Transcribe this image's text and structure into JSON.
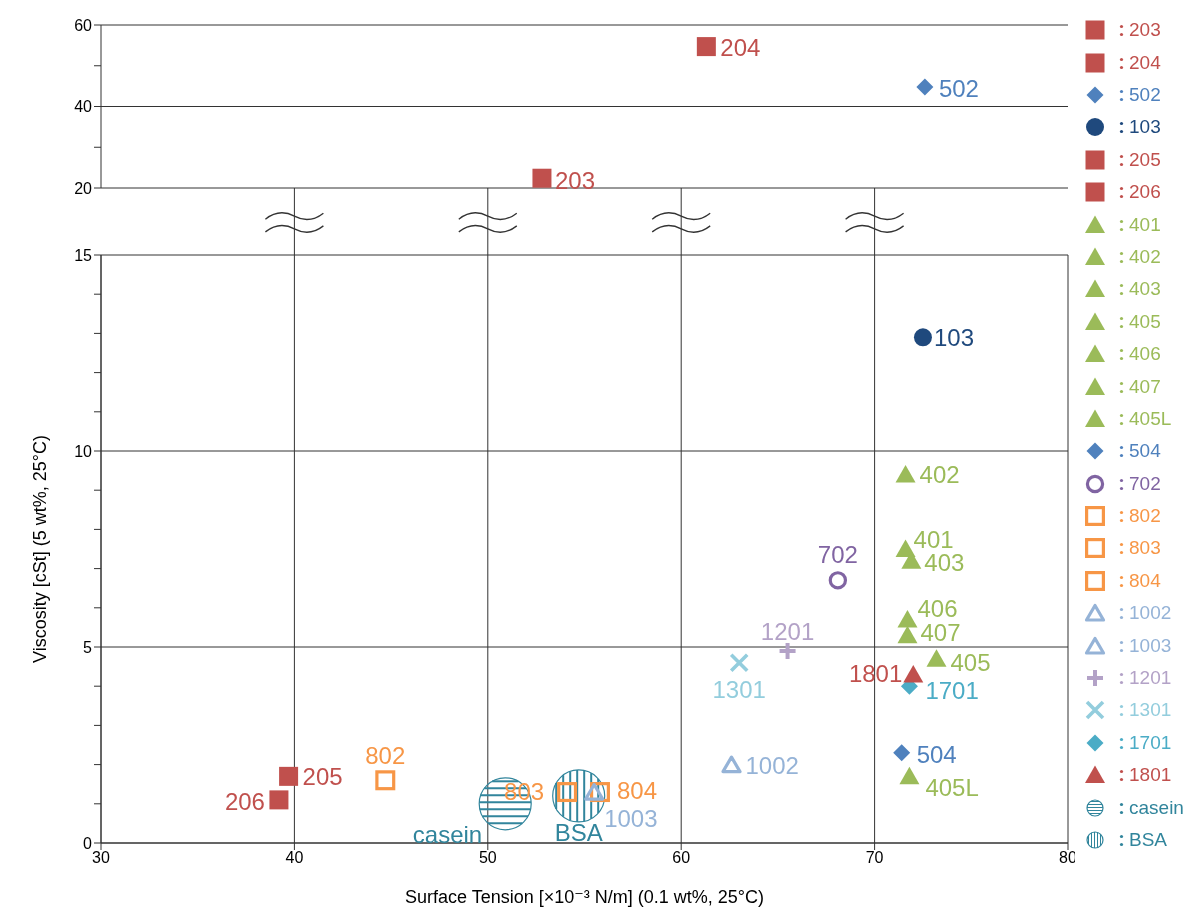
{
  "chart_data": [
    {
      "type": "scatter",
      "xlim": [
        30,
        80
      ],
      "xticks": [
        30,
        40,
        50,
        60,
        70,
        80
      ],
      "ylim": [
        20,
        60
      ],
      "yticks": [
        20,
        {
          "value": 30,
          "label": null
        },
        40,
        {
          "value": 50,
          "label": null
        },
        60
      ],
      "tick_labels": "y",
      "grid": true,
      "legend": "right",
      "series": [
        {
          "name": "203",
          "color": "#c0504d",
          "marker": "square",
          "x": [
            52.8
          ],
          "values": [
            22.4
          ]
        },
        {
          "name": "204",
          "color": "#c0504d",
          "marker": "square",
          "x": [
            61.3
          ],
          "values": [
            54.7
          ]
        },
        {
          "name": "502",
          "color": "#4f81bd",
          "marker": "diamond",
          "x": [
            72.6
          ],
          "values": [
            44.8
          ]
        }
      ]
    },
    {
      "type": "scatter",
      "xlabel": "Surface Tension [×10⁻³ N/m] (0.1 wt%, 25°C)",
      "ylabel": "Viscosity [cSt] (5 wt%, 25°C)",
      "xlim": [
        30,
        80
      ],
      "xticks": [
        30,
        40,
        50,
        60,
        70,
        80
      ],
      "ylim": [
        0,
        15
      ],
      "yticks": [
        0,
        {
          "value": 1,
          "label": null
        },
        {
          "value": 2,
          "label": null
        },
        {
          "value": 3,
          "label": null
        },
        {
          "value": 4,
          "label": null
        },
        5,
        {
          "value": 6,
          "label": null
        },
        {
          "value": 7,
          "label": null
        },
        {
          "value": 8,
          "label": null
        },
        {
          "value": 9,
          "label": null
        },
        10,
        {
          "value": 11,
          "label": null
        },
        {
          "value": 12,
          "label": null
        },
        {
          "value": 13,
          "label": null
        },
        {
          "value": 14,
          "label": null
        },
        15
      ],
      "grid": true,
      "legend": "right",
      "series": [
        {
          "name": "103",
          "color": "#1f497d",
          "marker": "circle",
          "x": [
            72.5
          ],
          "values": [
            12.9
          ]
        },
        {
          "name": "205",
          "color": "#c0504d",
          "marker": "square",
          "x": [
            39.7
          ],
          "values": [
            1.7
          ]
        },
        {
          "name": "206",
          "color": "#c0504d",
          "marker": "square",
          "x": [
            39.2
          ],
          "values": [
            1.1
          ]
        },
        {
          "name": "401",
          "color": "#9bbb59",
          "marker": "triangle",
          "x": [
            71.6
          ],
          "values": [
            7.5
          ]
        },
        {
          "name": "402",
          "color": "#9bbb59",
          "marker": "triangle",
          "x": [
            71.6
          ],
          "values": [
            9.4
          ]
        },
        {
          "name": "403",
          "color": "#9bbb59",
          "marker": "triangle",
          "x": [
            71.9
          ],
          "values": [
            7.2
          ]
        },
        {
          "name": "405",
          "color": "#9bbb59",
          "marker": "triangle",
          "x": [
            73.2
          ],
          "values": [
            4.7
          ]
        },
        {
          "name": "406",
          "color": "#9bbb59",
          "marker": "triangle",
          "x": [
            71.7
          ],
          "values": [
            5.7
          ]
        },
        {
          "name": "407",
          "color": "#9bbb59",
          "marker": "triangle",
          "x": [
            71.7
          ],
          "values": [
            5.3
          ]
        },
        {
          "name": "405L",
          "color": "#9bbb59",
          "marker": "triangle",
          "x": [
            71.8
          ],
          "values": [
            1.7
          ]
        },
        {
          "name": "504",
          "color": "#4f81bd",
          "marker": "diamond",
          "x": [
            71.4
          ],
          "values": [
            2.3
          ]
        },
        {
          "name": "702",
          "color": "#8064a2",
          "marker": "circle-open",
          "x": [
            68.1
          ],
          "values": [
            6.7
          ]
        },
        {
          "name": "802",
          "color": "#f79646",
          "marker": "square-open",
          "x": [
            44.7
          ],
          "values": [
            1.6
          ]
        },
        {
          "name": "803",
          "color": "#f79646",
          "marker": "square-open",
          "x": [
            54.1
          ],
          "values": [
            1.3
          ]
        },
        {
          "name": "804",
          "color": "#f79646",
          "marker": "square-open",
          "x": [
            55.8
          ],
          "values": [
            1.3
          ]
        },
        {
          "name": "1002",
          "color": "#95b3d7",
          "marker": "triangle-open",
          "x": [
            62.6
          ],
          "values": [
            2.0
          ]
        },
        {
          "name": "1003",
          "color": "#95b3d7",
          "marker": "triangle-open",
          "x": [
            55.5
          ],
          "values": [
            1.3
          ]
        },
        {
          "name": "1201",
          "color": "#b3a2c7",
          "marker": "plus",
          "x": [
            65.5
          ],
          "values": [
            4.9
          ]
        },
        {
          "name": "1301",
          "color": "#93cddd",
          "marker": "cross",
          "x": [
            63.0
          ],
          "values": [
            4.6
          ]
        },
        {
          "name": "1701",
          "color": "#4bacc6",
          "marker": "diamond",
          "x": [
            71.8
          ],
          "values": [
            4.0
          ]
        },
        {
          "name": "1801",
          "color": "#c0504d",
          "marker": "triangle",
          "x": [
            72.0
          ],
          "values": [
            4.3
          ]
        },
        {
          "name": "casein",
          "color": "#31859c",
          "marker": "circle-hatch-horizontal",
          "x": [
            50.9
          ],
          "values": [
            1.0
          ]
        },
        {
          "name": "BSA",
          "color": "#31859c",
          "marker": "circle-hatch-vertical",
          "x": [
            54.7
          ],
          "values": [
            1.2
          ]
        }
      ]
    }
  ]
}
